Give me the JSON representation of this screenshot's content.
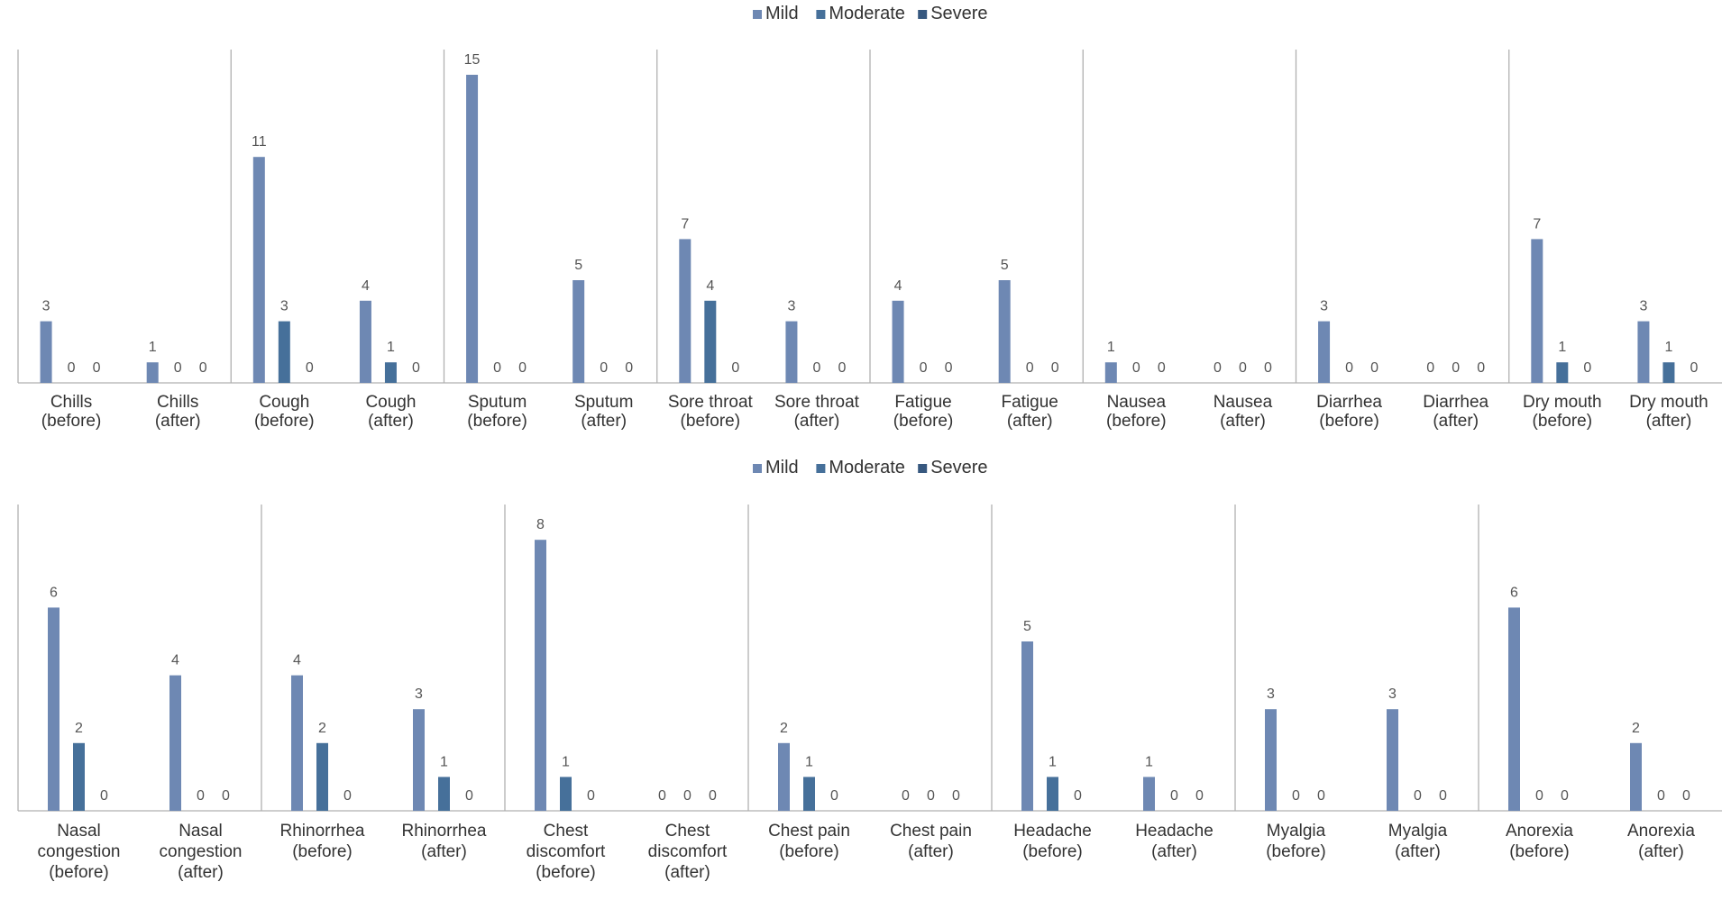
{
  "colors": {
    "mild": "#6e88b3",
    "moderate": "#46709a",
    "severe": "#37587f",
    "axis": "#b0b0b0",
    "text": "#333333",
    "data_label": "#555555"
  },
  "chart_data": [
    {
      "type": "bar",
      "legend_position": "top-center",
      "ylim": [
        0,
        15
      ],
      "series_names": [
        "Mild",
        "Moderate",
        "Severe"
      ],
      "groups": [
        {
          "symptom": "Chills",
          "categories": [
            {
              "label": [
                "Chills",
                "(before)"
              ],
              "values": [
                3,
                0,
                0
              ]
            },
            {
              "label": [
                "Chills",
                "(after)"
              ],
              "values": [
                1,
                0,
                0
              ]
            }
          ]
        },
        {
          "symptom": "Cough",
          "categories": [
            {
              "label": [
                "Cough",
                "(before)"
              ],
              "values": [
                11,
                3,
                0
              ]
            },
            {
              "label": [
                "Cough",
                "(after)"
              ],
              "values": [
                4,
                1,
                0
              ]
            }
          ]
        },
        {
          "symptom": "Sputum",
          "categories": [
            {
              "label": [
                "Sputum",
                "(before)"
              ],
              "values": [
                15,
                0,
                0
              ]
            },
            {
              "label": [
                "Sputum",
                "(after)"
              ],
              "values": [
                5,
                0,
                0
              ]
            }
          ]
        },
        {
          "symptom": "Sore throat",
          "categories": [
            {
              "label": [
                "Sore throat",
                "(before)"
              ],
              "values": [
                7,
                4,
                0
              ]
            },
            {
              "label": [
                "Sore throat",
                "(after)"
              ],
              "values": [
                3,
                0,
                0
              ]
            }
          ]
        },
        {
          "symptom": "Fatigue",
          "categories": [
            {
              "label": [
                "Fatigue",
                "(before)"
              ],
              "values": [
                4,
                0,
                0
              ]
            },
            {
              "label": [
                "Fatigue",
                "(after)"
              ],
              "values": [
                5,
                0,
                0
              ]
            }
          ]
        },
        {
          "symptom": "Nausea",
          "categories": [
            {
              "label": [
                "Nausea",
                "(before)"
              ],
              "values": [
                1,
                0,
                0
              ]
            },
            {
              "label": [
                "Nausea",
                "(after)"
              ],
              "values": [
                0,
                0,
                0
              ]
            }
          ]
        },
        {
          "symptom": "Diarrhea",
          "categories": [
            {
              "label": [
                "Diarrhea",
                "(before)"
              ],
              "values": [
                3,
                0,
                0
              ]
            },
            {
              "label": [
                "Diarrhea",
                "(after)"
              ],
              "values": [
                0,
                0,
                0
              ]
            }
          ]
        },
        {
          "symptom": "Dry mouth",
          "categories": [
            {
              "label": [
                "Dry mouth",
                "(before)"
              ],
              "values": [
                7,
                1,
                0
              ]
            },
            {
              "label": [
                "Dry mouth",
                "(after)"
              ],
              "values": [
                3,
                1,
                0
              ]
            }
          ]
        }
      ]
    },
    {
      "type": "bar",
      "legend_position": "top-center",
      "ylim": [
        0,
        8
      ],
      "series_names": [
        "Mild",
        "Moderate",
        "Severe"
      ],
      "groups": [
        {
          "symptom": "Nasal congestion",
          "categories": [
            {
              "label": [
                "Nasal",
                "congestion",
                "(before)"
              ],
              "values": [
                6,
                2,
                0
              ]
            },
            {
              "label": [
                "Nasal",
                "congestion",
                "(after)"
              ],
              "values": [
                4,
                0,
                0
              ]
            }
          ]
        },
        {
          "symptom": "Rhinorrhea",
          "categories": [
            {
              "label": [
                "Rhinorrhea",
                "(before)"
              ],
              "values": [
                4,
                2,
                0
              ]
            },
            {
              "label": [
                "Rhinorrhea",
                "(after)"
              ],
              "values": [
                3,
                1,
                0
              ]
            }
          ]
        },
        {
          "symptom": "Chest discomfort",
          "categories": [
            {
              "label": [
                "Chest",
                "discomfort",
                "(before)"
              ],
              "values": [
                8,
                1,
                0
              ]
            },
            {
              "label": [
                "Chest",
                "discomfort",
                "(after)"
              ],
              "values": [
                0,
                0,
                0
              ]
            }
          ]
        },
        {
          "symptom": "Chest pain",
          "categories": [
            {
              "label": [
                "Chest pain",
                "(before)"
              ],
              "values": [
                2,
                1,
                0
              ]
            },
            {
              "label": [
                "Chest pain",
                "(after)"
              ],
              "values": [
                0,
                0,
                0
              ]
            }
          ]
        },
        {
          "symptom": "Headache",
          "categories": [
            {
              "label": [
                "Headache",
                "(before)"
              ],
              "values": [
                5,
                1,
                0
              ]
            },
            {
              "label": [
                "Headache",
                "(after)"
              ],
              "values": [
                1,
                0,
                0
              ]
            }
          ]
        },
        {
          "symptom": "Myalgia",
          "categories": [
            {
              "label": [
                "Myalgia",
                "(before)"
              ],
              "values": [
                3,
                0,
                0
              ]
            },
            {
              "label": [
                "Myalgia",
                "(after)"
              ],
              "values": [
                3,
                0,
                0
              ]
            }
          ]
        },
        {
          "symptom": "Anorexia",
          "categories": [
            {
              "label": [
                "Anorexia",
                "(before)"
              ],
              "values": [
                6,
                0,
                0
              ]
            },
            {
              "label": [
                "Anorexia",
                "(after)"
              ],
              "values": [
                2,
                0,
                0
              ]
            }
          ]
        }
      ]
    }
  ]
}
